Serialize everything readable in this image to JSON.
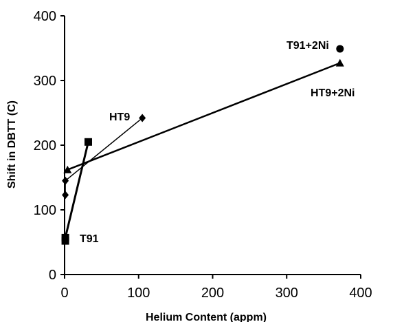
{
  "chart_data": {
    "type": "scatter",
    "xlabel": "Helium Content (appm)",
    "ylabel": "Shift in DBTT (C)",
    "xlim": [
      0,
      400
    ],
    "ylim": [
      0,
      400
    ],
    "xticks": [
      0,
      100,
      200,
      300,
      400
    ],
    "yticks": [
      0,
      100,
      200,
      300,
      400
    ],
    "grid": false,
    "series": [
      {
        "name": "T91",
        "marker": "square",
        "line": true,
        "x": [
          1,
          1,
          32
        ],
        "y": [
          52,
          57,
          205
        ]
      },
      {
        "name": "HT9",
        "marker": "diamond",
        "line": true,
        "x": [
          1,
          1,
          105
        ],
        "y": [
          123,
          145,
          242
        ]
      },
      {
        "name": "HT9+2Ni",
        "marker": "triangle",
        "line": true,
        "x": [
          4,
          372
        ],
        "y": [
          162,
          327
        ]
      },
      {
        "name": "T91+2Ni",
        "marker": "circle",
        "line": false,
        "x": [
          372
        ],
        "y": [
          349
        ]
      }
    ],
    "annotations": [
      {
        "text": "HT9",
        "series": "HT9"
      },
      {
        "text": "T91",
        "series": "T91"
      },
      {
        "text": "T91+2Ni",
        "series": "T91+2Ni"
      },
      {
        "text": "HT9+2Ni",
        "series": "HT9+2Ni"
      }
    ]
  }
}
